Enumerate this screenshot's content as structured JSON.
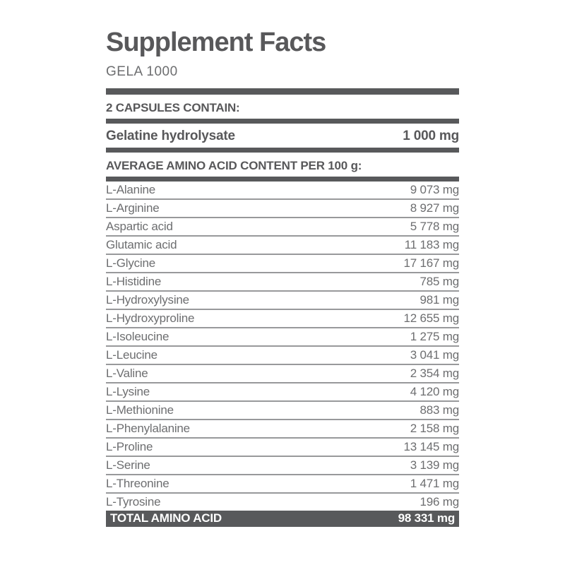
{
  "header": {
    "title": "Supplement Facts",
    "subtitle": "GELA 1000"
  },
  "serving": {
    "heading": "2 CAPSULES CONTAIN:",
    "ingredient": {
      "label": "Gelatine hydrolysate",
      "amount": "1 000 mg"
    }
  },
  "amino_acids": {
    "heading": "AVERAGE AMINO ACID CONTENT PER 100 g:",
    "rows": [
      {
        "label": "L-Alanine",
        "amount": "9 073 mg"
      },
      {
        "label": "L-Arginine",
        "amount": "8 927 mg"
      },
      {
        "label": "Aspartic acid",
        "amount": "5 778 mg"
      },
      {
        "label": "Glutamic acid",
        "amount": "11 183 mg"
      },
      {
        "label": "L-Glycine",
        "amount": "17 167 mg"
      },
      {
        "label": "L-Histidine",
        "amount": "785 mg"
      },
      {
        "label": "L-Hydroxylysine",
        "amount": "981 mg"
      },
      {
        "label": "L-Hydroxyproline",
        "amount": "12 655 mg"
      },
      {
        "label": "L-Isoleucine",
        "amount": "1 275 mg"
      },
      {
        "label": "L-Leucine",
        "amount": "3 041 mg"
      },
      {
        "label": "L-Valine",
        "amount": "2 354 mg"
      },
      {
        "label": "L-Lysine",
        "amount": "4 120 mg"
      },
      {
        "label": "L-Methionine",
        "amount": "883 mg"
      },
      {
        "label": "L-Phenylalanine",
        "amount": "2 158 mg"
      },
      {
        "label": "L-Proline",
        "amount": "13 145 mg"
      },
      {
        "label": "L-Serine",
        "amount": "3 139 mg"
      },
      {
        "label": "L-Threonine",
        "amount": "1 471 mg"
      },
      {
        "label": "L-Tyrosine",
        "amount": "196 mg"
      }
    ],
    "total": {
      "label": "TOTAL AMINO ACID",
      "amount": "98 331 mg"
    }
  },
  "colors": {
    "heading_text": "#58585a",
    "body_text": "#6d6e70",
    "bar": "#58595b",
    "separator": "#98999b",
    "total_background": "#58595b",
    "total_text": "#ffffff"
  }
}
